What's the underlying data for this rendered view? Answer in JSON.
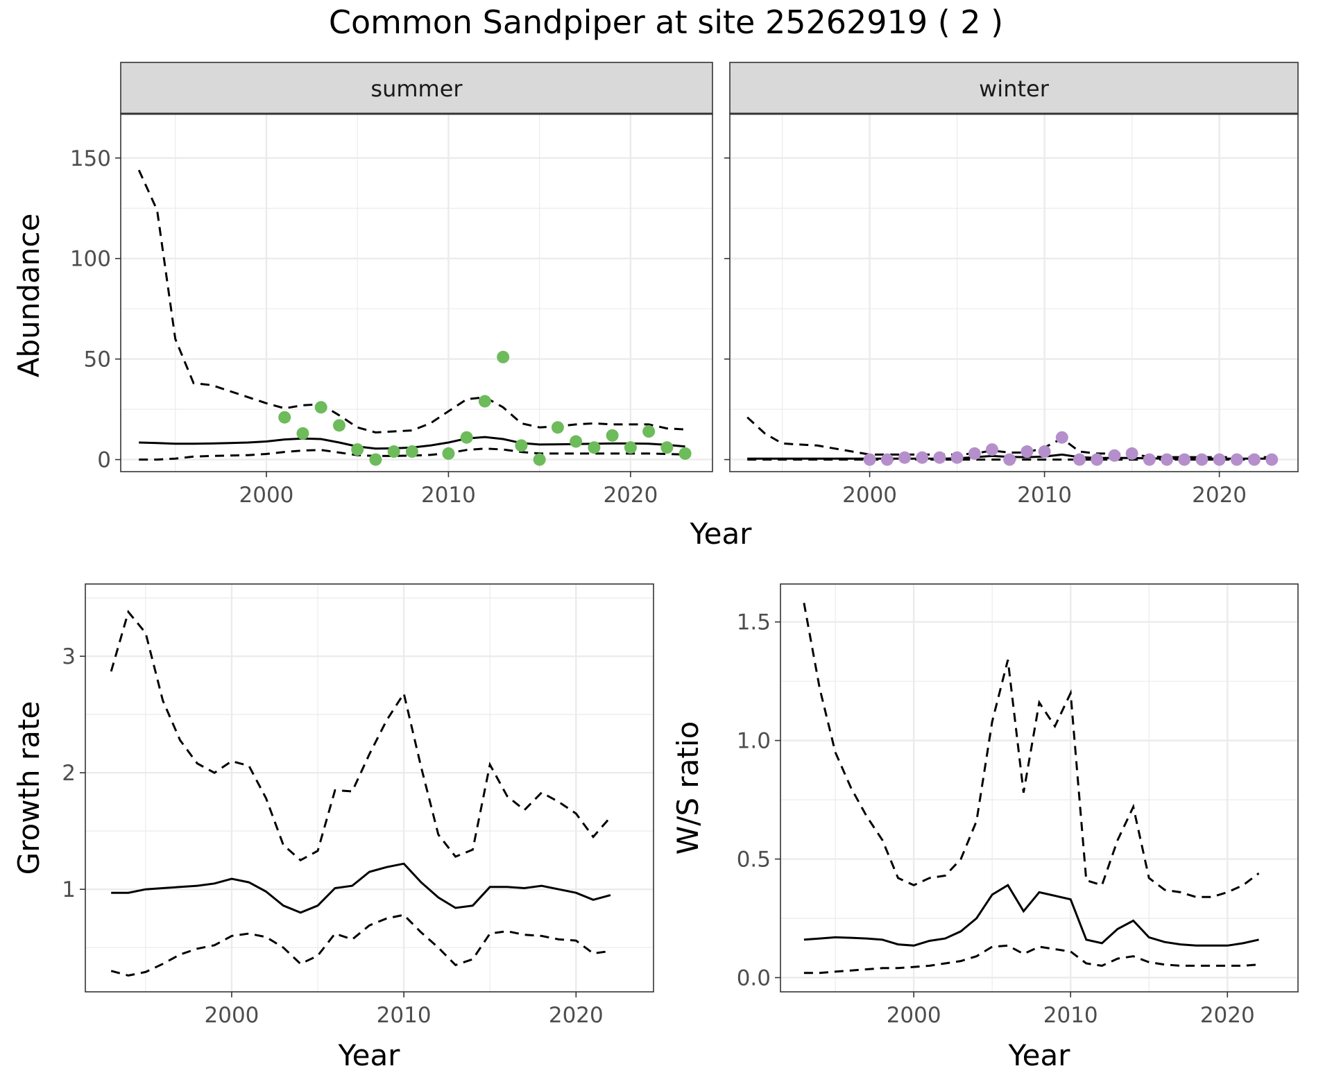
{
  "title": "Common Sandpiper at site 25262919 ( 2 )",
  "chart_data": [
    {
      "type": "line",
      "panel": "summer",
      "strip_label": "summer",
      "xlabel": "",
      "ylabel": "Abundance",
      "xlim": [
        1992,
        2024.5
      ],
      "ylim": [
        -6,
        172
      ],
      "x_ticks": [
        2000,
        2010,
        2020
      ],
      "y_ticks": [
        0,
        50,
        100,
        150
      ],
      "point_color": "#6dbb5b",
      "x": [
        1993,
        1994,
        1995,
        1996,
        1997,
        1998,
        1999,
        2000,
        2001,
        2002,
        2003,
        2004,
        2005,
        2006,
        2007,
        2008,
        2009,
        2010,
        2011,
        2012,
        2013,
        2014,
        2015,
        2016,
        2017,
        2018,
        2019,
        2020,
        2021,
        2022,
        2023
      ],
      "series": [
        {
          "role": "estimate",
          "values": [
            8.5,
            8.2,
            7.9,
            7.9,
            8.0,
            8.2,
            8.5,
            9.0,
            10.0,
            10.5,
            10.2,
            8.5,
            6.5,
            5.5,
            5.6,
            6.0,
            7.0,
            8.5,
            10.5,
            11.2,
            10.2,
            8.2,
            7.5,
            7.6,
            7.7,
            7.9,
            8.0,
            8.0,
            7.9,
            7.3,
            6.5
          ]
        },
        {
          "role": "upper",
          "values": [
            144,
            124,
            60,
            38,
            37,
            34,
            31,
            28,
            25.5,
            27,
            27.5,
            22,
            16,
            13.5,
            14,
            14.5,
            18,
            24,
            30,
            31,
            26,
            18,
            16,
            16.5,
            17.5,
            18,
            17.5,
            17.5,
            17.5,
            15.5,
            15
          ]
        },
        {
          "role": "lower",
          "values": [
            0,
            0,
            0.5,
            1.5,
            1.8,
            2,
            2.2,
            2.8,
            3.8,
            4.5,
            4.8,
            3.5,
            2.2,
            1.8,
            1.8,
            2,
            2.3,
            3.2,
            4.8,
            5.5,
            5,
            3.8,
            3,
            3,
            3,
            3,
            3,
            3,
            3,
            2.8,
            2.5
          ]
        }
      ],
      "points": {
        "x": [
          2001,
          2002,
          2003,
          2004,
          2005,
          2006,
          2007,
          2008,
          2010,
          2011,
          2012,
          2013,
          2014,
          2015,
          2016,
          2017,
          2018,
          2019,
          2020,
          2021,
          2022,
          2023
        ],
        "y": [
          21,
          13,
          26,
          17,
          5,
          0,
          4,
          4,
          3,
          11,
          29,
          51,
          7,
          0,
          16,
          9,
          6,
          12,
          6,
          14,
          6,
          3
        ]
      }
    },
    {
      "type": "line",
      "panel": "winter",
      "strip_label": "winter",
      "xlabel": "",
      "ylabel": "",
      "xlim": [
        1992,
        2024.5
      ],
      "ylim": [
        -6,
        172
      ],
      "x_ticks": [
        2000,
        2010,
        2020
      ],
      "y_ticks": [
        0,
        50,
        100,
        150
      ],
      "point_color": "#b58fcb",
      "x": [
        1993,
        1994,
        1995,
        1996,
        1997,
        1998,
        1999,
        2000,
        2001,
        2002,
        2003,
        2004,
        2005,
        2006,
        2007,
        2008,
        2009,
        2010,
        2011,
        2012,
        2013,
        2014,
        2015,
        2016,
        2017,
        2018,
        2019,
        2020,
        2021,
        2022,
        2023
      ],
      "series": [
        {
          "role": "estimate",
          "values": [
            0.5,
            0.5,
            0.5,
            0.5,
            0.5,
            0.5,
            0.5,
            0.5,
            0.5,
            0.5,
            0.5,
            0.5,
            0.6,
            1.2,
            1.8,
            1.3,
            1.2,
            1.5,
            2.5,
            1.2,
            0.8,
            0.8,
            0.8,
            0.6,
            0.5,
            0.5,
            0.5,
            0.5,
            0.5,
            0.5,
            0.5
          ]
        },
        {
          "role": "upper",
          "values": [
            21,
            13,
            8,
            7.5,
            7,
            5.5,
            4,
            2.5,
            2.5,
            2.5,
            2.5,
            2.5,
            2.5,
            3,
            4.5,
            3.5,
            3.5,
            6,
            10.5,
            4,
            3,
            3,
            2.5,
            1.5,
            1.2,
            1.2,
            1.2,
            1.2,
            1.2,
            1.2,
            1.2
          ]
        },
        {
          "role": "lower",
          "values": [
            0,
            0,
            0,
            0,
            0,
            0,
            0,
            0,
            0,
            0,
            0,
            0,
            0,
            0,
            0,
            0,
            0,
            0,
            0,
            0,
            0,
            0,
            0,
            0,
            0,
            0,
            0,
            0,
            0,
            0,
            0
          ]
        }
      ],
      "points": {
        "x": [
          2000,
          2001,
          2002,
          2003,
          2004,
          2005,
          2006,
          2007,
          2008,
          2009,
          2010,
          2011,
          2012,
          2013,
          2014,
          2015,
          2016,
          2017,
          2018,
          2019,
          2020,
          2021,
          2022,
          2023
        ],
        "y": [
          0,
          0,
          1,
          1,
          1,
          1,
          3,
          5,
          0,
          4,
          4,
          11,
          0,
          0,
          2,
          3,
          0,
          0,
          0,
          0,
          0,
          0,
          0,
          0
        ]
      }
    },
    {
      "type": "line",
      "panel": "growth",
      "strip_label": "",
      "xlabel": "Year",
      "ylabel": "Growth rate",
      "xlim": [
        1991.5,
        2024.5
      ],
      "ylim": [
        0.12,
        3.62
      ],
      "x_ticks": [
        2000,
        2010,
        2020
      ],
      "y_ticks": [
        1,
        2,
        3
      ],
      "x": [
        1993,
        1994,
        1995,
        1996,
        1997,
        1998,
        1999,
        2000,
        2001,
        2002,
        2003,
        2004,
        2005,
        2006,
        2007,
        2008,
        2009,
        2010,
        2011,
        2012,
        2013,
        2014,
        2015,
        2016,
        2017,
        2018,
        2019,
        2020,
        2021,
        2022
      ],
      "series": [
        {
          "role": "estimate",
          "values": [
            0.97,
            0.97,
            1.0,
            1.01,
            1.02,
            1.03,
            1.05,
            1.09,
            1.06,
            0.98,
            0.86,
            0.8,
            0.86,
            1.01,
            1.03,
            1.15,
            1.19,
            1.22,
            1.06,
            0.93,
            0.84,
            0.86,
            1.02,
            1.02,
            1.01,
            1.03,
            1.0,
            0.97,
            0.91,
            0.95
          ]
        },
        {
          "role": "upper",
          "values": [
            2.87,
            3.38,
            3.2,
            2.62,
            2.28,
            2.08,
            2.0,
            2.1,
            2.06,
            1.78,
            1.38,
            1.25,
            1.33,
            1.85,
            1.84,
            2.16,
            2.45,
            2.68,
            2.05,
            1.47,
            1.28,
            1.34,
            2.07,
            1.8,
            1.68,
            1.83,
            1.75,
            1.65,
            1.45,
            1.62
          ]
        },
        {
          "role": "lower",
          "values": [
            0.3,
            0.26,
            0.29,
            0.36,
            0.44,
            0.49,
            0.52,
            0.6,
            0.62,
            0.59,
            0.5,
            0.36,
            0.43,
            0.62,
            0.57,
            0.69,
            0.75,
            0.78,
            0.63,
            0.5,
            0.35,
            0.4,
            0.62,
            0.64,
            0.61,
            0.6,
            0.57,
            0.56,
            0.45,
            0.47
          ]
        }
      ]
    },
    {
      "type": "line",
      "panel": "ratio",
      "strip_label": "",
      "xlabel": "Year",
      "ylabel": "W/S ratio",
      "xlim": [
        1991.5,
        2024.5
      ],
      "ylim": [
        -0.06,
        1.66
      ],
      "x_ticks": [
        2000,
        2010,
        2020
      ],
      "y_ticks": [
        0.0,
        0.5,
        1.0,
        1.5
      ],
      "y_tick_labels": [
        "0.0",
        "0.5",
        "1.0",
        "1.5"
      ],
      "x": [
        1993,
        1994,
        1995,
        1996,
        1997,
        1998,
        1999,
        2000,
        2001,
        2002,
        2003,
        2004,
        2005,
        2006,
        2007,
        2008,
        2009,
        2010,
        2011,
        2012,
        2013,
        2014,
        2015,
        2016,
        2017,
        2018,
        2019,
        2020,
        2021,
        2022
      ],
      "series": [
        {
          "role": "estimate",
          "values": [
            0.16,
            0.165,
            0.17,
            0.168,
            0.165,
            0.16,
            0.14,
            0.135,
            0.155,
            0.165,
            0.195,
            0.25,
            0.35,
            0.39,
            0.28,
            0.36,
            0.345,
            0.33,
            0.16,
            0.145,
            0.205,
            0.24,
            0.17,
            0.15,
            0.14,
            0.135,
            0.135,
            0.135,
            0.145,
            0.16
          ]
        },
        {
          "role": "upper",
          "values": [
            1.58,
            1.22,
            0.95,
            0.8,
            0.68,
            0.58,
            0.42,
            0.39,
            0.42,
            0.43,
            0.5,
            0.66,
            1.08,
            1.34,
            0.78,
            1.16,
            1.06,
            1.2,
            0.41,
            0.39,
            0.58,
            0.72,
            0.42,
            0.37,
            0.36,
            0.34,
            0.34,
            0.36,
            0.39,
            0.44
          ]
        },
        {
          "role": "lower",
          "values": [
            0.02,
            0.02,
            0.025,
            0.03,
            0.035,
            0.04,
            0.04,
            0.045,
            0.05,
            0.06,
            0.07,
            0.09,
            0.13,
            0.135,
            0.1,
            0.13,
            0.12,
            0.11,
            0.06,
            0.05,
            0.08,
            0.09,
            0.065,
            0.055,
            0.05,
            0.05,
            0.05,
            0.05,
            0.05,
            0.055
          ]
        }
      ]
    }
  ],
  "shared_axis": {
    "xlabel": "Year"
  }
}
